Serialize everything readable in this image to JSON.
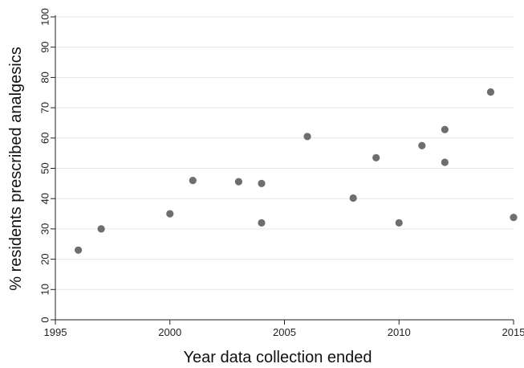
{
  "chart_data": {
    "type": "scatter",
    "xlabel": "Year data collection ended",
    "ylabel": "% residents prescribed analgesics",
    "xlim": [
      1995,
      2015
    ],
    "ylim": [
      0,
      100
    ],
    "xticks": [
      "1995",
      "2000",
      "2005",
      "2010",
      "2015"
    ],
    "yticks": [
      "0",
      "10",
      "20",
      "30",
      "40",
      "50",
      "60",
      "70",
      "80",
      "90",
      "100"
    ],
    "grid": "horizontal",
    "colors": {
      "point": "#6e6e6e",
      "grid": "#e6e6e6",
      "axis": "#222222"
    },
    "points": [
      {
        "x": 1996,
        "y": 23
      },
      {
        "x": 1997,
        "y": 30
      },
      {
        "x": 2000,
        "y": 35
      },
      {
        "x": 2001,
        "y": 46
      },
      {
        "x": 2003,
        "y": 45.6
      },
      {
        "x": 2004,
        "y": 45
      },
      {
        "x": 2004,
        "y": 32
      },
      {
        "x": 2006,
        "y": 60.5
      },
      {
        "x": 2008,
        "y": 40.2
      },
      {
        "x": 2009,
        "y": 53.5
      },
      {
        "x": 2010,
        "y": 32
      },
      {
        "x": 2011,
        "y": 57.5
      },
      {
        "x": 2012,
        "y": 62.8
      },
      {
        "x": 2012,
        "y": 52
      },
      {
        "x": 2014,
        "y": 75.2
      },
      {
        "x": 2015,
        "y": 33.8
      }
    ]
  }
}
